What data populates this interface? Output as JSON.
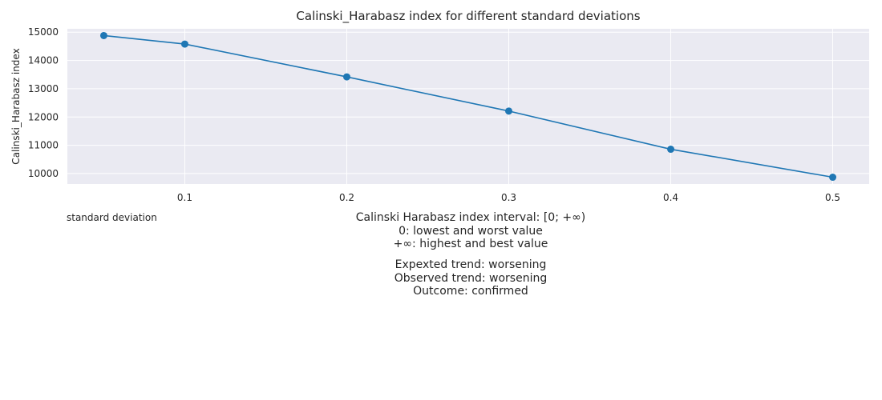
{
  "chart_data": {
    "type": "line",
    "title": "Calinski_Harabasz index for different standard deviations",
    "xlabel": "standard deviation",
    "ylabel": "Calinski_Harabasz index",
    "x": [
      0.05,
      0.1,
      0.2,
      0.3,
      0.4,
      0.5
    ],
    "series": [
      {
        "values": [
          14880,
          14580,
          13420,
          12210,
          10860,
          9870
        ]
      }
    ],
    "xlim": [
      0.0275,
      0.5225
    ],
    "ylim": [
      9630,
      15120
    ],
    "xticks": [
      "0.1",
      "0.2",
      "0.3",
      "0.4",
      "0.5"
    ],
    "xtick_values": [
      0.1,
      0.2,
      0.3,
      0.4,
      0.5
    ],
    "yticks": [
      "10000",
      "11000",
      "12000",
      "13000",
      "14000",
      "15000"
    ],
    "ytick_values": [
      10000,
      11000,
      12000,
      13000,
      14000,
      15000
    ],
    "grid": true,
    "colors": {
      "line": "#1f77b4",
      "background": "#eaeaf2",
      "grid": "#ffffff"
    }
  },
  "notes": {
    "interval": [
      "Calinski Harabasz index interval: [0; +∞)",
      "0: lowest and worst value",
      "+∞: highest and best value"
    ],
    "trend": [
      "Expexted trend: worsening",
      "Observed trend: worsening",
      "Outcome: confirmed"
    ]
  }
}
